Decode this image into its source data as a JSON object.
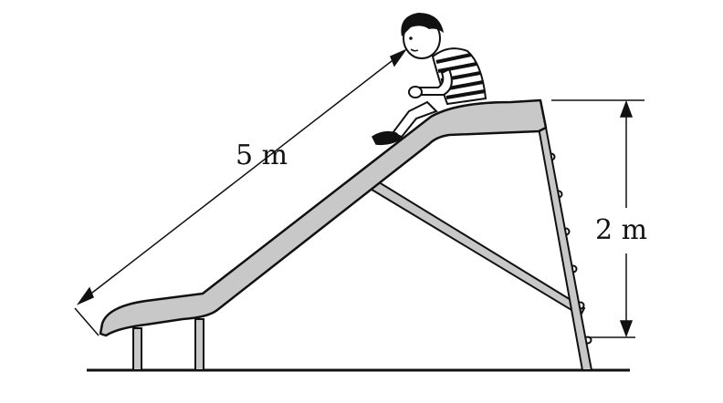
{
  "diagram": {
    "slide_length_label": "5 m",
    "slide_height_label": "2 m"
  },
  "colors": {
    "slide_fill": "#c8c8c8",
    "line": "#111111",
    "background": "#ffffff"
  },
  "figures": {
    "child": "child-sitting-icon"
  }
}
